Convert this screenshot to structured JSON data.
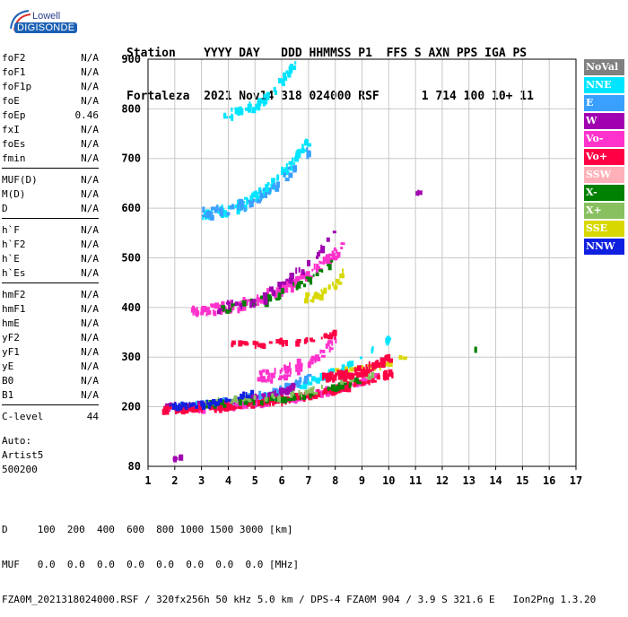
{
  "logo": {
    "line1": "Lowell",
    "line2": "DIGISONDE"
  },
  "header": {
    "line1": "Station    YYYY DAY   DDD HHMMSS P1  FFS S AXN PPS IGA PS",
    "line2": "Fortaleza  2021 Nov14 318 024000 RSF      1 714 100 10+ 11"
  },
  "params": {
    "group1": [
      {
        "name": "foF2",
        "value": "N/A"
      },
      {
        "name": "foF1",
        "value": "N/A"
      },
      {
        "name": "foF1p",
        "value": "N/A"
      },
      {
        "name": "foE",
        "value": "N/A"
      },
      {
        "name": "foEp",
        "value": "0.46"
      },
      {
        "name": "fxI",
        "value": "N/A"
      },
      {
        "name": "foEs",
        "value": "N/A"
      },
      {
        "name": "fmin",
        "value": "N/A"
      }
    ],
    "group2": [
      {
        "name": "MUF(D)",
        "value": "N/A"
      },
      {
        "name": "M(D)",
        "value": "N/A"
      },
      {
        "name": "D",
        "value": "N/A"
      }
    ],
    "group3": [
      {
        "name": "h`F",
        "value": "N/A"
      },
      {
        "name": "h`F2",
        "value": "N/A"
      },
      {
        "name": "h`E",
        "value": "N/A"
      },
      {
        "name": "h`Es",
        "value": "N/A"
      }
    ],
    "group4": [
      {
        "name": "hmF2",
        "value": "N/A"
      },
      {
        "name": "hmF1",
        "value": "N/A"
      },
      {
        "name": "hmE",
        "value": "N/A"
      },
      {
        "name": "yF2",
        "value": "N/A"
      },
      {
        "name": "yF1",
        "value": "N/A"
      },
      {
        "name": "yE",
        "value": "N/A"
      },
      {
        "name": "B0",
        "value": "N/A"
      },
      {
        "name": "B1",
        "value": "N/A"
      }
    ],
    "group5": [
      {
        "name": "C-level",
        "value": "44"
      }
    ]
  },
  "auto": {
    "line1": "Auto:",
    "line2": "Artist5",
    "line3": "500200"
  },
  "legend": [
    {
      "label": "NoVal",
      "color": "#808080"
    },
    {
      "label": "NNE",
      "color": "#00e5ff"
    },
    {
      "label": "E",
      "color": "#3aa0ff"
    },
    {
      "label": "W",
      "color": "#a000b0"
    },
    {
      "label": "Vo-",
      "color": "#ff33cc"
    },
    {
      "label": "Vo+",
      "color": "#ff0044"
    },
    {
      "label": "SSW",
      "color": "#ffb0b8"
    },
    {
      "label": "X-",
      "color": "#008000"
    },
    {
      "label": "X+",
      "color": "#88c060"
    },
    {
      "label": "SSE",
      "color": "#d8d800"
    },
    {
      "label": "NNW",
      "color": "#1020e0"
    }
  ],
  "footer": {
    "line1": "D     100  200  400  600  800 1000 1500 3000 [km]",
    "line2": "MUF   0.0  0.0  0.0  0.0  0.0  0.0  0.0  0.0 [MHz]",
    "line3": "FZA0M_2021318024000.RSF / 320fx256h 50 kHz 5.0 km / DPS-4 FZA0M 904 / 3.9 S 321.6 E   Ion2Png 1.3.20"
  },
  "chart_data": {
    "type": "scatter",
    "xlim": [
      1,
      17
    ],
    "ylim": [
      80,
      900
    ],
    "x_ticks": [
      1,
      2,
      3,
      4,
      5,
      6,
      7,
      8,
      9,
      10,
      11,
      12,
      13,
      14,
      15,
      16,
      17
    ],
    "y_ticks": [
      80,
      200,
      300,
      400,
      500,
      600,
      700,
      800,
      900
    ],
    "grid": true,
    "xlabel": "",
    "ylabel": "",
    "traces": [
      {
        "name": "NNE",
        "x0": 2.0,
        "x1": 10.1,
        "y0": 200,
        "y1": 340,
        "n": 90,
        "spread": 12
      },
      {
        "name": "E",
        "x0": 2.5,
        "x1": 7.0,
        "y0": 205,
        "y1": 260,
        "n": 70,
        "spread": 10
      },
      {
        "name": "W",
        "x0": 1.6,
        "x1": 6.5,
        "y0": 200,
        "y1": 240,
        "n": 130,
        "spread": 10
      },
      {
        "name": "Vo-",
        "x0": 1.5,
        "x1": 9.5,
        "y0": 195,
        "y1": 260,
        "n": 150,
        "spread": 10
      },
      {
        "name": "Vo+",
        "x0": 1.5,
        "x1": 10.2,
        "y0": 195,
        "y1": 270,
        "n": 180,
        "spread": 12
      },
      {
        "name": "X-",
        "x0": 3.0,
        "x1": 9.0,
        "y0": 205,
        "y1": 255,
        "n": 70,
        "spread": 10
      },
      {
        "name": "X+",
        "x0": 3.0,
        "x1": 9.5,
        "y0": 210,
        "y1": 270,
        "n": 40,
        "spread": 12
      },
      {
        "name": "SSE",
        "x0": 7.5,
        "x1": 10.6,
        "y0": 270,
        "y1": 300,
        "n": 25,
        "spread": 10
      },
      {
        "name": "NNW",
        "x0": 1.7,
        "x1": 5.0,
        "y0": 200,
        "y1": 230,
        "n": 50,
        "spread": 8
      },
      {
        "name": "Vo+",
        "x0": 7.5,
        "x1": 10.0,
        "y0": 260,
        "y1": 300,
        "n": 90,
        "spread": 15
      },
      {
        "name": "Vo-",
        "x0": 5.0,
        "x1": 8.0,
        "y0": 260,
        "y1": 340,
        "n": 60,
        "spread": 25
      },
      {
        "name": "Vo-",
        "x0": 2.6,
        "x1": 8.2,
        "y0": 395,
        "y1": 520,
        "n": 160,
        "spread": 20
      },
      {
        "name": "X-",
        "x0": 3.5,
        "x1": 8.0,
        "y0": 400,
        "y1": 500,
        "n": 40,
        "spread": 20
      },
      {
        "name": "SSE",
        "x0": 6.8,
        "x1": 8.3,
        "y0": 420,
        "y1": 470,
        "n": 25,
        "spread": 15
      },
      {
        "name": "W",
        "x0": 3.5,
        "x1": 8.0,
        "y0": 400,
        "y1": 560,
        "n": 40,
        "spread": 20
      },
      {
        "name": "NNE",
        "x0": 3.0,
        "x1": 7.0,
        "y0": 590,
        "y1": 740,
        "n": 110,
        "spread": 20
      },
      {
        "name": "E",
        "x0": 3.0,
        "x1": 7.0,
        "y0": 590,
        "y1": 720,
        "n": 60,
        "spread": 20
      },
      {
        "name": "NNE",
        "x0": 3.8,
        "x1": 6.5,
        "y0": 790,
        "y1": 895,
        "n": 60,
        "spread": 18
      },
      {
        "name": "Vo+",
        "x0": 4.0,
        "x1": 8.0,
        "y0": 325,
        "y1": 345,
        "n": 40,
        "spread": 10
      },
      {
        "name": "W",
        "x0": 1.9,
        "x1": 2.3,
        "y0": 95,
        "y1": 100,
        "n": 8,
        "spread": 2
      },
      {
        "name": "W",
        "x0": 11.0,
        "x1": 11.1,
        "y0": 630,
        "y1": 632,
        "n": 3,
        "spread": 1
      },
      {
        "name": "X-",
        "x0": 13.2,
        "x1": 13.25,
        "y0": 315,
        "y1": 320,
        "n": 3,
        "spread": 1
      }
    ]
  }
}
